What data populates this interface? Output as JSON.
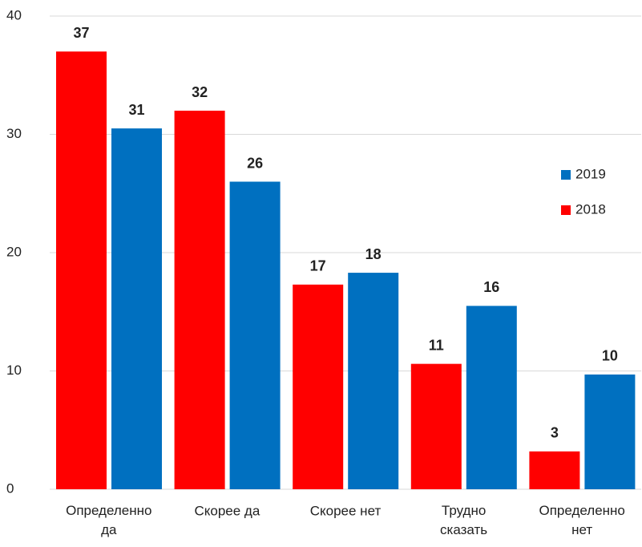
{
  "chart_data": {
    "type": "bar",
    "categories": [
      "Определенно да",
      "Скорее да",
      "Скорее нет",
      "Трудно сказать",
      "Определенно нет"
    ],
    "series": [
      {
        "name": "2018",
        "color": "#ff0000",
        "values": [
          37,
          32,
          17.3,
          10.6,
          3.2
        ],
        "value_labels": [
          "37",
          "32",
          "17",
          "11",
          "3"
        ]
      },
      {
        "name": "2019",
        "color": "#0070c0",
        "values": [
          30.5,
          26,
          18.3,
          15.5,
          9.7
        ],
        "value_labels": [
          "31",
          "26",
          "18",
          "16",
          "10"
        ]
      }
    ],
    "ylim": [
      0,
      40
    ],
    "yticks": [
      0,
      10,
      20,
      30,
      40
    ],
    "grid": true,
    "legend": "right"
  }
}
